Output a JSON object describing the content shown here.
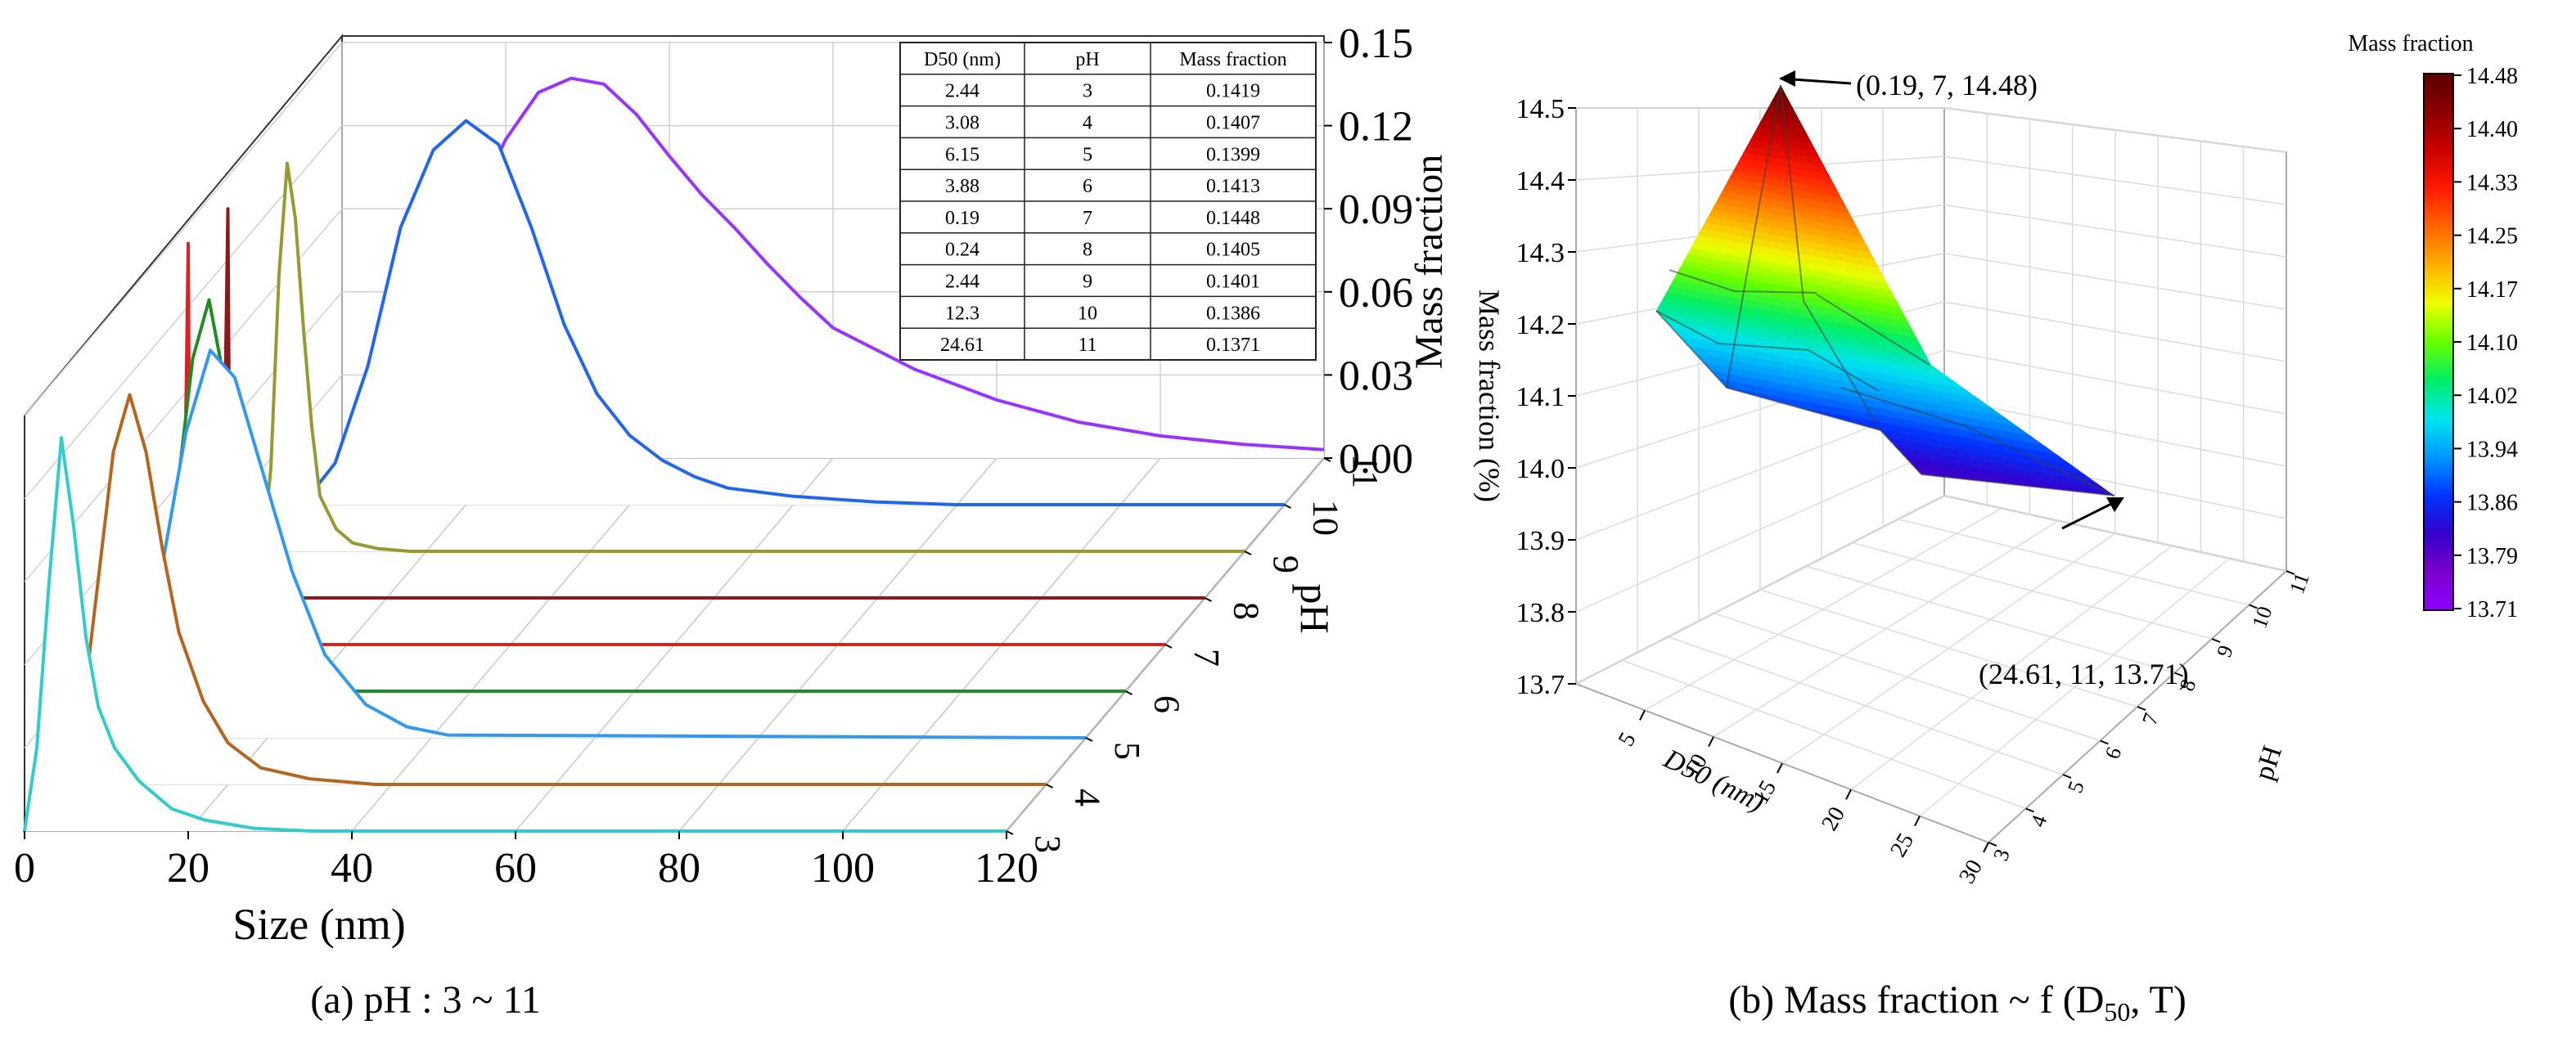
{
  "chart_data": [
    {
      "type": "line",
      "panel_caption": "(a)  pH : 3 ~ 11",
      "xlabel": "Size (nm)",
      "ylabel": "Mass fraction",
      "zlabel": "pH",
      "xlim": [
        0,
        120
      ],
      "ylim": [
        0,
        0.15
      ],
      "x_ticks": [
        "0",
        "20",
        "40",
        "60",
        "80",
        "100",
        "120"
      ],
      "y_ticks": [
        "0.00",
        "0.03",
        "0.06",
        "0.09",
        "0.12",
        "0.15"
      ],
      "z_ticks": [
        "3",
        "4",
        "5",
        "6",
        "7",
        "8",
        "9",
        "10",
        "11"
      ],
      "series": [
        {
          "name": "pH 3",
          "color": "#33cccc",
          "x": [
            0,
            1.5,
            3,
            4.5,
            6,
            7.5,
            9,
            11,
            14,
            18,
            22,
            28,
            35,
            120
          ],
          "values": [
            0,
            0.03,
            0.09,
            0.1419,
            0.11,
            0.07,
            0.045,
            0.03,
            0.018,
            0.008,
            0.004,
            0.001,
            0,
            0
          ]
        },
        {
          "name": "pH 4",
          "color": "#b5651d",
          "x": [
            0,
            2,
            4,
            6,
            8,
            10,
            12,
            14,
            17,
            20,
            24,
            30,
            38,
            120
          ],
          "values": [
            0,
            0.02,
            0.07,
            0.12,
            0.1407,
            0.12,
            0.085,
            0.055,
            0.03,
            0.015,
            0.006,
            0.002,
            0,
            0
          ]
        },
        {
          "name": "pH 5",
          "color": "#3399ee",
          "x": [
            0,
            4,
            7,
            10,
            13,
            16,
            19,
            23,
            27,
            32,
            37,
            42,
            120
          ],
          "values": [
            0,
            0.02,
            0.06,
            0.11,
            0.1399,
            0.13,
            0.1,
            0.06,
            0.03,
            0.012,
            0.004,
            0.001,
            0
          ]
        },
        {
          "name": "pH 6",
          "color": "#228b22",
          "x": [
            0,
            2,
            4,
            6,
            8,
            10,
            12,
            14,
            17,
            20,
            25,
            120
          ],
          "values": [
            0,
            0.02,
            0.07,
            0.12,
            0.1413,
            0.11,
            0.07,
            0.035,
            0.015,
            0.005,
            0,
            0
          ]
        },
        {
          "name": "pH 7",
          "color": "#dd2222",
          "x": [
            0,
            0.3,
            0.6,
            0.9,
            120
          ],
          "values": [
            0,
            0.08,
            0.1448,
            0,
            0
          ]
        },
        {
          "name": "pH 8",
          "color": "#8b1a1a",
          "x": [
            0,
            0.3,
            0.6,
            0.9,
            120
          ],
          "values": [
            0,
            0.08,
            0.1405,
            0,
            0
          ]
        },
        {
          "name": "pH 9",
          "color": "#999933",
          "x": [
            0,
            1,
            2,
            3,
            4,
            5,
            6,
            7,
            9,
            11,
            14,
            18,
            24,
            120
          ],
          "values": [
            0,
            0.03,
            0.1,
            0.1401,
            0.12,
            0.08,
            0.045,
            0.02,
            0.008,
            0.003,
            0.001,
            0,
            0,
            0
          ]
        },
        {
          "name": "pH 10",
          "color": "#2266ee",
          "x": [
            0,
            4,
            8,
            12,
            16,
            20,
            24,
            28,
            32,
            36,
            40,
            44,
            48,
            52,
            60,
            70,
            80,
            90,
            100,
            110,
            120
          ],
          "values": [
            0,
            0.015,
            0.05,
            0.1,
            0.128,
            0.1386,
            0.13,
            0.1,
            0.065,
            0.04,
            0.025,
            0.016,
            0.01,
            0.006,
            0.003,
            0.001,
            0,
            0,
            0,
            0,
            0
          ]
        },
        {
          "name": "pH 11",
          "color": "#9933ff",
          "x": [
            0,
            4,
            8,
            12,
            16,
            20,
            24,
            28,
            32,
            36,
            40,
            44,
            48,
            52,
            56,
            60,
            70,
            80,
            90,
            100,
            110,
            120
          ],
          "values": [
            0,
            0.01,
            0.03,
            0.06,
            0.09,
            0.115,
            0.132,
            0.1371,
            0.135,
            0.124,
            0.109,
            0.095,
            0.083,
            0.07,
            0.058,
            0.047,
            0.032,
            0.021,
            0.013,
            0.008,
            0.005,
            0.003
          ]
        }
      ],
      "table": {
        "columns": [
          "D50 (nm)",
          "pH",
          "Mass fraction"
        ],
        "rows": [
          [
            "2.44",
            "3",
            "0.1419"
          ],
          [
            "3.08",
            "4",
            "0.1407"
          ],
          [
            "6.15",
            "5",
            "0.1399"
          ],
          [
            "3.88",
            "6",
            "0.1413"
          ],
          [
            "0.19",
            "7",
            "0.1448"
          ],
          [
            "0.24",
            "8",
            "0.1405"
          ],
          [
            "2.44",
            "9",
            "0.1401"
          ],
          [
            "12.3",
            "10",
            "0.1386"
          ],
          [
            "24.61",
            "11",
            "0.1371"
          ]
        ]
      }
    },
    {
      "type": "surface",
      "panel_caption_prefix": "(b)  Mass fraction ~ f (D",
      "panel_caption_sub": "50",
      "panel_caption_suffix": ", T)",
      "xlabel": "D50 (nm)",
      "ylabel": "pH",
      "zlabel": "Mass fraction (%)",
      "zlim": [
        13.7,
        14.5
      ],
      "x_ticks": [
        "5",
        "10",
        "15",
        "20",
        "25",
        "30"
      ],
      "y_ticks": [
        "3",
        "4",
        "5",
        "6",
        "7",
        "8",
        "9",
        "10",
        "11"
      ],
      "z_ticks": [
        "13.7",
        "13.8",
        "13.9",
        "14.0",
        "14.1",
        "14.2",
        "14.3",
        "14.4",
        "14.5"
      ],
      "points": [
        {
          "d50": 2.44,
          "ph": 3,
          "mass_fraction": 14.19
        },
        {
          "d50": 3.08,
          "ph": 4,
          "mass_fraction": 14.07
        },
        {
          "d50": 6.15,
          "ph": 5,
          "mass_fraction": 13.99
        },
        {
          "d50": 3.88,
          "ph": 6,
          "mass_fraction": 14.13
        },
        {
          "d50": 0.19,
          "ph": 7,
          "mass_fraction": 14.48
        },
        {
          "d50": 0.24,
          "ph": 8,
          "mass_fraction": 14.05
        },
        {
          "d50": 2.44,
          "ph": 9,
          "mass_fraction": 14.01
        },
        {
          "d50": 12.3,
          "ph": 10,
          "mass_fraction": 13.86
        },
        {
          "d50": 24.61,
          "ph": 11,
          "mass_fraction": 13.71
        }
      ],
      "annotations": [
        "(0.19, 7, 14.48)",
        "(24.61, 11, 13.71)"
      ],
      "colorbar": {
        "title": "Mass fraction",
        "ticks": [
          "14.48",
          "14.40",
          "14.33",
          "14.25",
          "14.17",
          "14.10",
          "14.02",
          "13.94",
          "13.86",
          "13.79",
          "13.71"
        ],
        "colors": [
          "#5a0000",
          "#8b0000",
          "#cc0000",
          "#ff1a00",
          "#ff6600",
          "#ffb000",
          "#eeff00",
          "#66ff00",
          "#00ee66",
          "#00e5ee",
          "#0099ff",
          "#0033ff",
          "#3300cc",
          "#7a00cc",
          "#8b00ff"
        ]
      }
    }
  ]
}
